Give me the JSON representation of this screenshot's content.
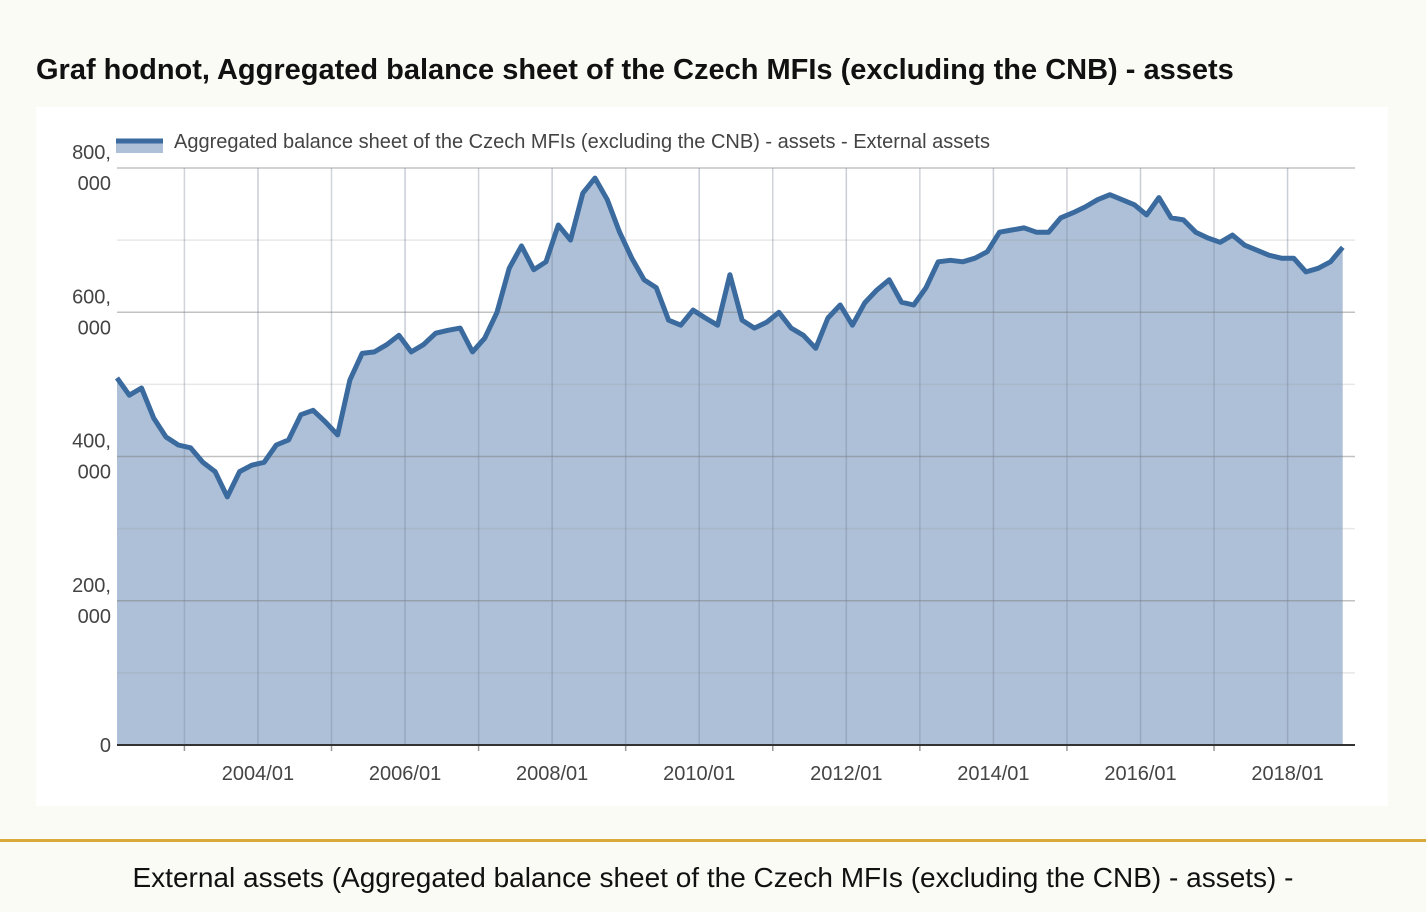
{
  "chart_data": {
    "type": "area",
    "title": "Graf hodnot, Aggregated balance sheet of the Czech MFIs (excluding the CNB) - assets",
    "x": [
      "2002/02",
      "2002/04",
      "2002/06",
      "2002/08",
      "2002/10",
      "2002/12",
      "2003/02",
      "2003/04",
      "2003/06",
      "2003/08",
      "2003/10",
      "2003/12",
      "2004/02",
      "2004/04",
      "2004/06",
      "2004/08",
      "2004/10",
      "2004/12",
      "2005/02",
      "2005/04",
      "2005/06",
      "2005/08",
      "2005/10",
      "2005/12",
      "2006/02",
      "2006/04",
      "2006/06",
      "2006/08",
      "2006/10",
      "2006/12",
      "2007/02",
      "2007/04",
      "2007/06",
      "2007/08",
      "2007/10",
      "2007/12",
      "2008/02",
      "2008/04",
      "2008/06",
      "2008/08",
      "2008/10",
      "2008/12",
      "2009/02",
      "2009/04",
      "2009/06",
      "2009/08",
      "2009/10",
      "2009/12",
      "2010/02",
      "2010/04",
      "2010/06",
      "2010/08",
      "2010/10",
      "2010/12",
      "2011/02",
      "2011/04",
      "2011/06",
      "2011/08",
      "2011/10",
      "2011/12",
      "2012/02",
      "2012/04",
      "2012/06",
      "2012/08",
      "2012/10",
      "2012/12",
      "2013/02",
      "2013/04",
      "2013/06",
      "2013/08",
      "2013/10",
      "2013/12",
      "2014/02",
      "2014/04",
      "2014/06",
      "2014/08",
      "2014/10",
      "2014/12",
      "2015/02",
      "2015/04",
      "2015/06",
      "2015/08",
      "2015/10",
      "2015/12",
      "2016/02",
      "2016/04",
      "2016/06",
      "2016/08",
      "2016/10",
      "2016/12",
      "2017/02",
      "2017/04",
      "2017/06",
      "2017/08",
      "2017/10",
      "2017/12",
      "2018/02",
      "2018/04",
      "2018/06",
      "2018/08",
      "2018/10"
    ],
    "series": [
      {
        "name": "Aggregated balance sheet of the Czech MFIs (excluding the CNB) - assets - External assets",
        "color": "#3a6a9e",
        "fill": "#adc0d8",
        "values": [
          509000,
          485000,
          495000,
          453000,
          427000,
          416000,
          412000,
          392000,
          379000,
          344000,
          379000,
          388000,
          392000,
          416000,
          423000,
          458000,
          464000,
          448000,
          430000,
          506000,
          543000,
          545000,
          555000,
          568000,
          545000,
          555000,
          571000,
          575000,
          578000,
          545000,
          564000,
          600000,
          661000,
          692000,
          659000,
          670000,
          721000,
          700000,
          765000,
          786000,
          756000,
          711000,
          675000,
          645000,
          634000,
          589000,
          582000,
          603000,
          592000,
          582000,
          652000,
          589000,
          578000,
          586000,
          600000,
          578000,
          568000,
          550000,
          592000,
          610000,
          582000,
          613000,
          631000,
          645000,
          614000,
          610000,
          634000,
          670000,
          672000,
          670000,
          675000,
          684000,
          711000,
          714000,
          717000,
          711000,
          711000,
          731000,
          738000,
          746000,
          756000,
          763000,
          756000,
          749000,
          735000,
          759000,
          731000,
          728000,
          711000,
          703000,
          697000,
          707000,
          693000,
          686000,
          679000,
          675000,
          675000,
          656000,
          661000,
          670000,
          690000
        ]
      }
    ],
    "xlim": [
      "2002/02",
      "2018/12"
    ],
    "xticks": [
      "2004/01",
      "2006/01",
      "2008/01",
      "2010/01",
      "2012/01",
      "2014/01",
      "2016/01",
      "2018/01"
    ],
    "x_minor_ticks": [
      "2003/01",
      "2005/01",
      "2007/01",
      "2009/01",
      "2011/01",
      "2013/01",
      "2015/01",
      "2017/01"
    ],
    "ylim": [
      0,
      800000
    ],
    "yticks": [
      0,
      {
        "value": 200000,
        "label": "200,000"
      },
      {
        "value": 400000,
        "label": "400,000"
      },
      {
        "value": 600000,
        "label": "600,000"
      },
      {
        "value": 800000,
        "label": "800,000"
      }
    ],
    "y_minor_ticks": [
      100000,
      300000,
      500000,
      700000
    ],
    "grid": true,
    "legend": "top"
  },
  "caption": "External assets (Aggregated balance sheet of the Czech MFIs (excluding the CNB) - assets) -"
}
